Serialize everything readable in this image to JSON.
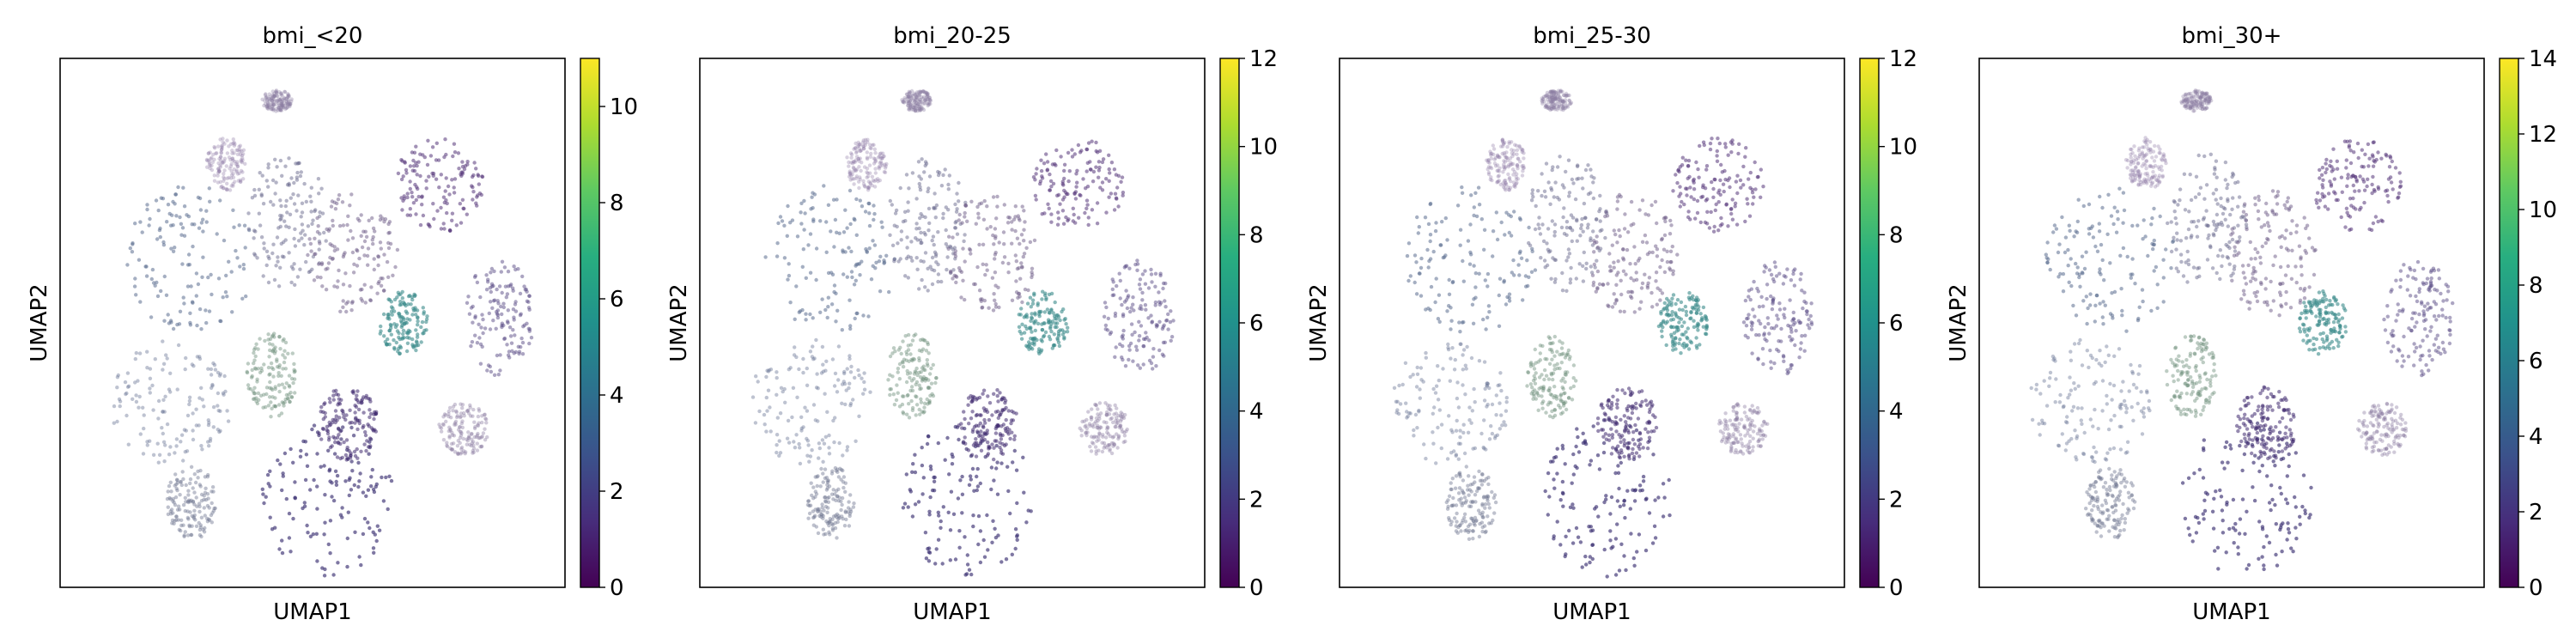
{
  "chart_data": [
    {
      "type": "scatter",
      "title": "bmi_<20",
      "xlabel": "UMAP1",
      "ylabel": "UMAP2",
      "colorbar": {
        "colormap": "viridis",
        "range": [
          0,
          11
        ],
        "ticks": [
          0,
          2,
          4,
          6,
          8,
          10
        ]
      }
    },
    {
      "type": "scatter",
      "title": "bmi_20-25",
      "xlabel": "UMAP1",
      "ylabel": "UMAP2",
      "colorbar": {
        "colormap": "viridis",
        "range": [
          0,
          12
        ],
        "ticks": [
          0,
          2,
          4,
          6,
          8,
          10,
          12
        ]
      }
    },
    {
      "type": "scatter",
      "title": "bmi_25-30",
      "xlabel": "UMAP1",
      "ylabel": "UMAP2",
      "colorbar": {
        "colormap": "viridis",
        "range": [
          0,
          12
        ],
        "ticks": [
          0,
          2,
          4,
          6,
          8,
          10,
          12
        ]
      }
    },
    {
      "type": "scatter",
      "title": "bmi_30+",
      "xlabel": "UMAP1",
      "ylabel": "UMAP2",
      "colorbar": {
        "colormap": "viridis",
        "range": [
          0,
          14
        ],
        "ticks": [
          0,
          2,
          4,
          6,
          8,
          10,
          12,
          14
        ]
      }
    }
  ]
}
